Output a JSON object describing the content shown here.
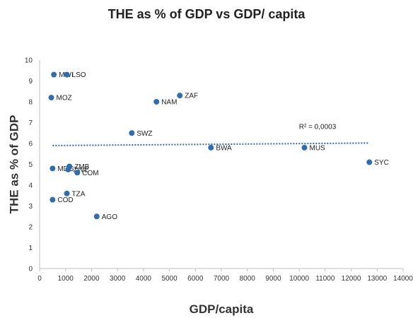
{
  "chart_data": {
    "type": "scatter",
    "title": "THE as % of GDP vs GDP/ capita",
    "xlabel": "GDP/capita",
    "ylabel": "THE as % of GDP",
    "xlim": [
      0,
      14000
    ],
    "ylim": [
      0,
      10
    ],
    "x_ticks": [
      0,
      1000,
      2000,
      3000,
      4000,
      5000,
      6000,
      7000,
      8000,
      9000,
      10000,
      11000,
      12000,
      13000,
      14000
    ],
    "y_ticks": [
      0,
      1,
      2,
      3,
      4,
      5,
      6,
      7,
      8,
      9,
      10
    ],
    "grid": false,
    "legend": "none",
    "point_color": "#2E6DB4",
    "trendline": {
      "type": "linear",
      "label": "R² = 0,0003",
      "start": [
        500,
        5.9
      ],
      "end": [
        12700,
        6.02
      ],
      "color": "#2E6DB4"
    },
    "points": [
      {
        "label": "MWI",
        "x": 550,
        "y": 9.3
      },
      {
        "label": "LSO",
        "x": 1050,
        "y": 9.3
      },
      {
        "label": "MOZ",
        "x": 450,
        "y": 8.2
      },
      {
        "label": "NAM",
        "x": 4500,
        "y": 8.0
      },
      {
        "label": "ZAF",
        "x": 5400,
        "y": 8.3
      },
      {
        "label": "SWZ",
        "x": 3550,
        "y": 6.5
      },
      {
        "label": "BWA",
        "x": 6600,
        "y": 5.8
      },
      {
        "label": "MUS",
        "x": 10200,
        "y": 5.8
      },
      {
        "label": "SYC",
        "x": 12700,
        "y": 5.1
      },
      {
        "label": "MDG",
        "x": 500,
        "y": 4.8
      },
      {
        "label": "ZMB",
        "x": 1150,
        "y": 4.9
      },
      {
        "label": "ZWE",
        "x": 1100,
        "y": 4.75
      },
      {
        "label": "COM",
        "x": 1450,
        "y": 4.6
      },
      {
        "label": "TZA",
        "x": 1050,
        "y": 3.6
      },
      {
        "label": "COD",
        "x": 500,
        "y": 3.3
      },
      {
        "label": "AGO",
        "x": 2200,
        "y": 2.5
      }
    ]
  }
}
